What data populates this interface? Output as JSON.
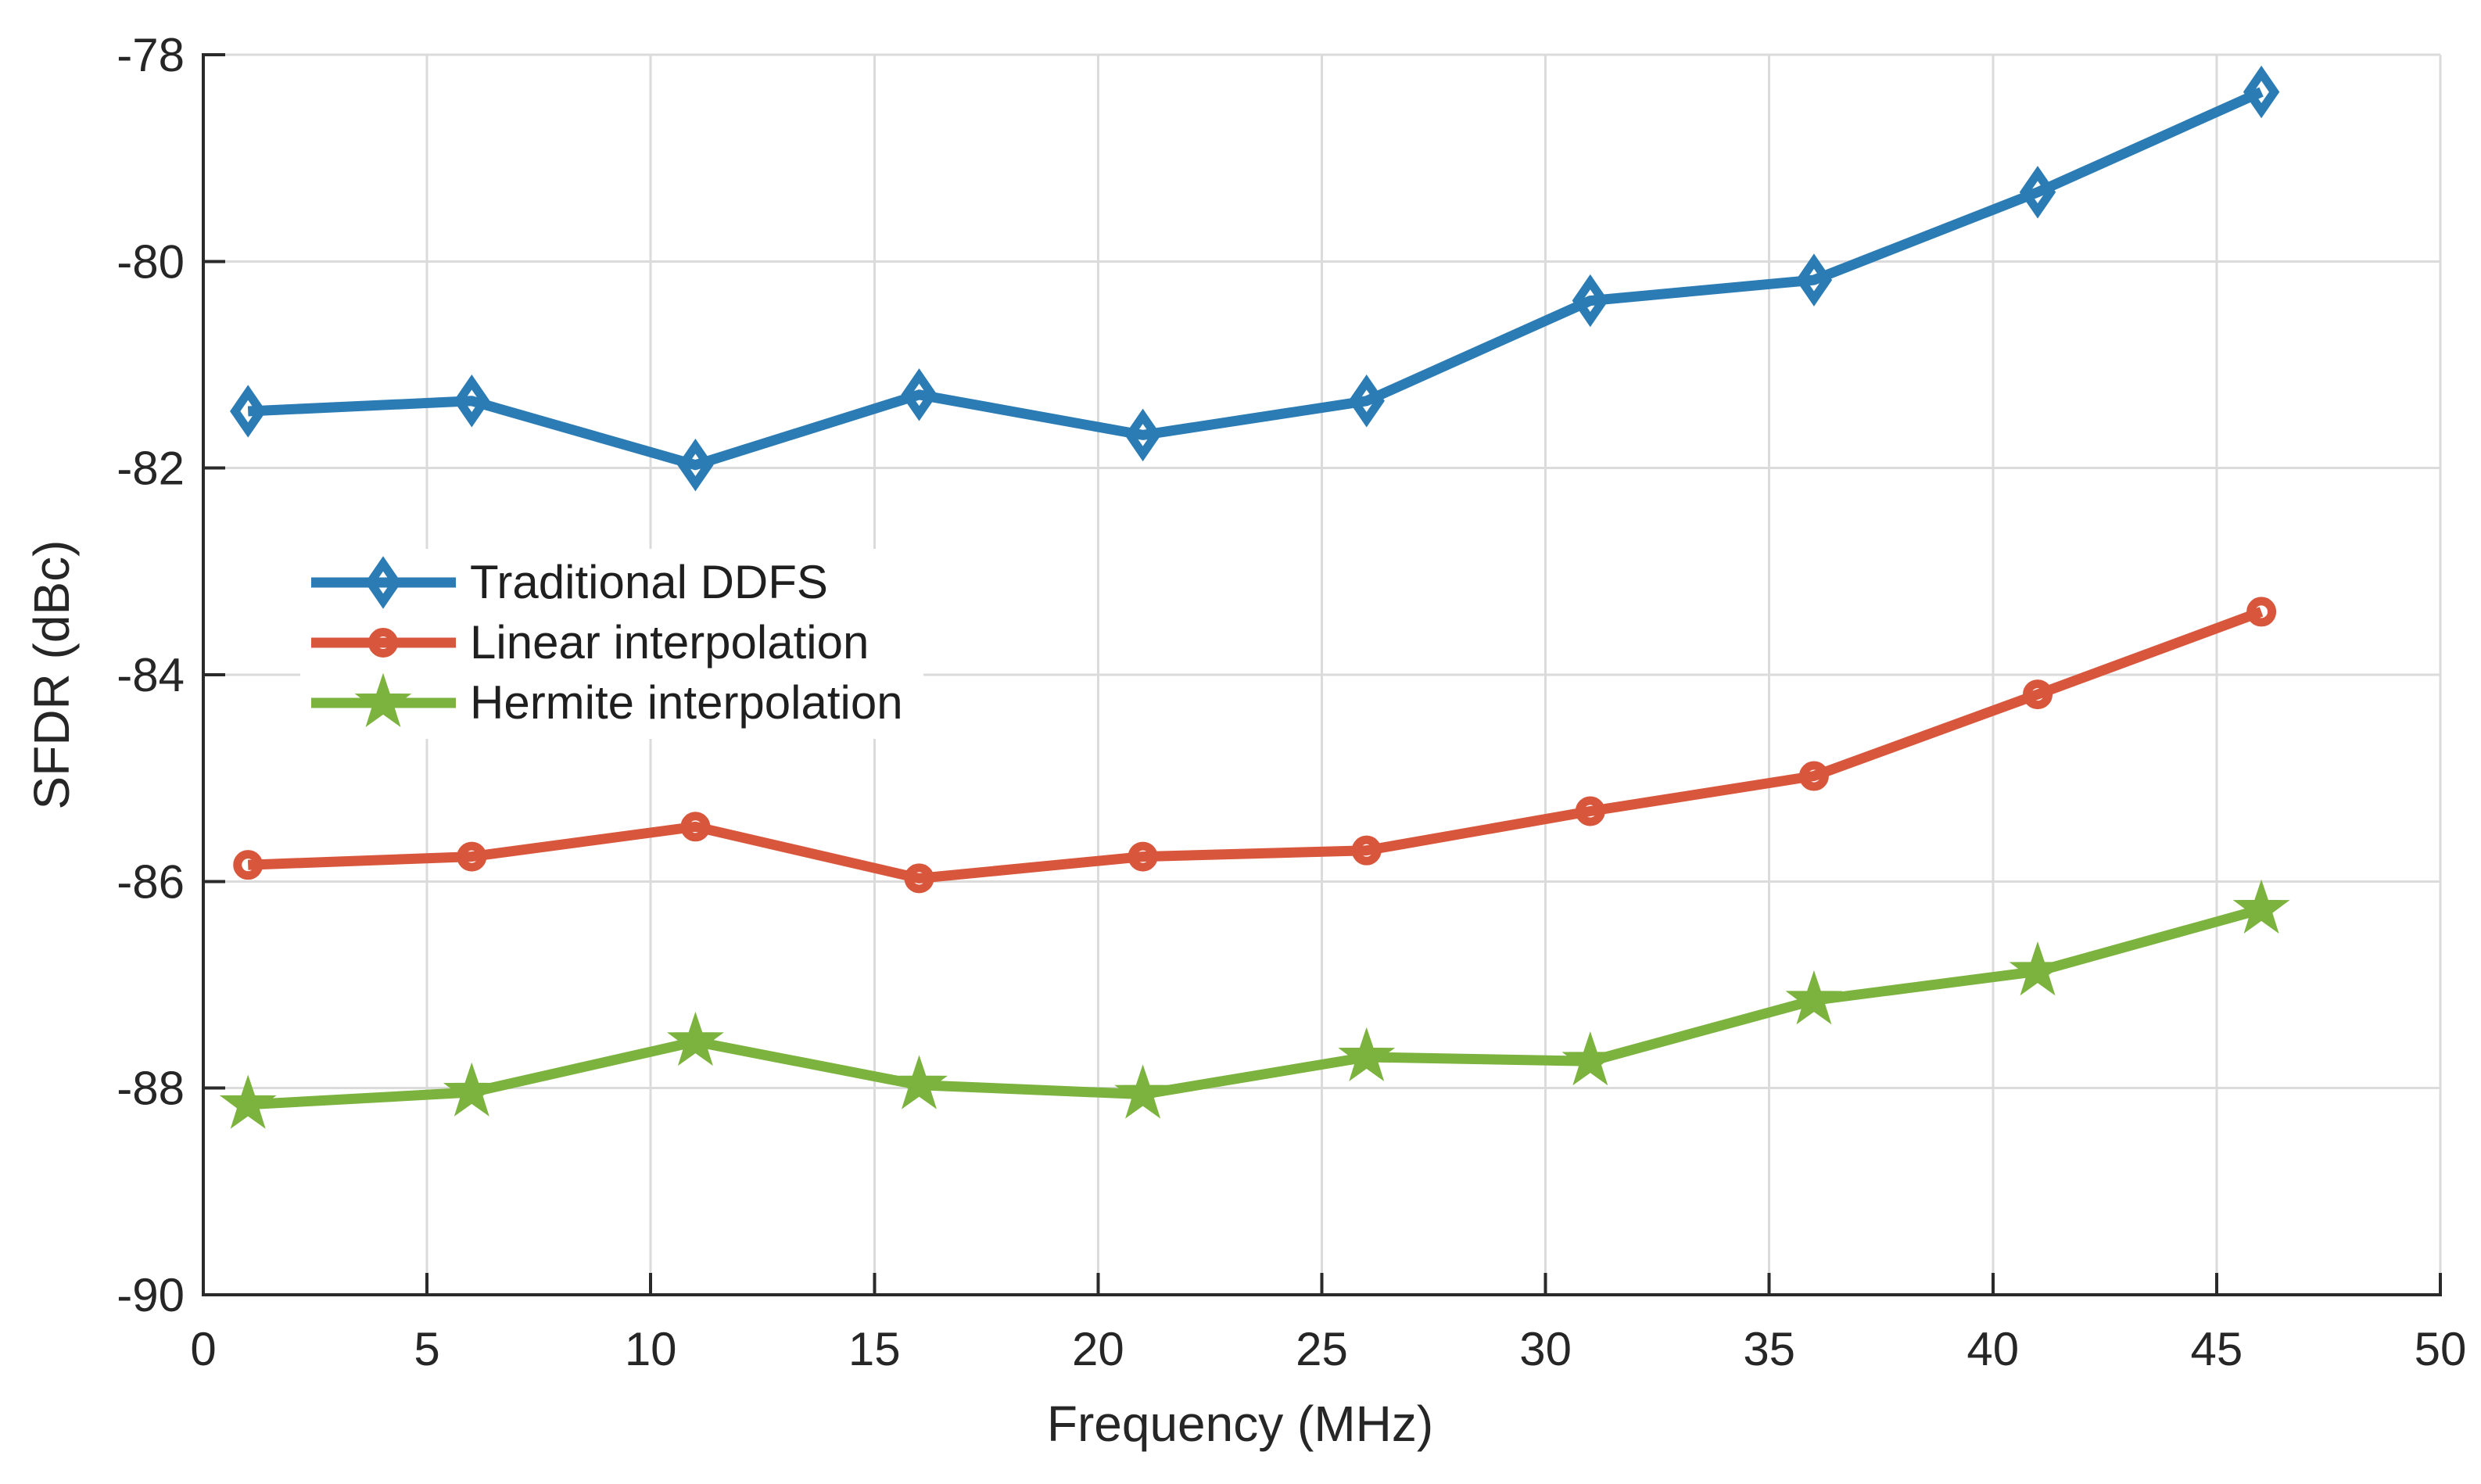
{
  "chart_data": {
    "type": "line",
    "title": "",
    "xlabel": "Frequency (MHz)",
    "ylabel": "SFDR (dBc)",
    "xlim": [
      0,
      50
    ],
    "ylim": [
      -90,
      -78
    ],
    "xticks": [
      0,
      5,
      10,
      15,
      20,
      25,
      30,
      35,
      40,
      45,
      50
    ],
    "yticks": [
      -90,
      -88,
      -86,
      -84,
      -82,
      -80,
      -78
    ],
    "grid": true,
    "legend_position": "upper-left-inside",
    "x": [
      1,
      6,
      11,
      16,
      21,
      26,
      31,
      36,
      41,
      46
    ],
    "series": [
      {
        "name": "Traditional DDFS",
        "marker": "diamond",
        "color": "#2B7BB5",
        "values": [
          -81.45,
          -81.35,
          -81.97,
          -81.29,
          -81.68,
          -81.35,
          -80.38,
          -80.18,
          -79.33,
          -78.36
        ]
      },
      {
        "name": "Linear interpolation",
        "marker": "circle",
        "color": "#D8573C",
        "values": [
          -85.84,
          -85.76,
          -85.47,
          -85.97,
          -85.76,
          -85.7,
          -85.32,
          -84.98,
          -84.19,
          -83.39
        ]
      },
      {
        "name": "Hermite interpolation",
        "marker": "star",
        "color": "#7CB33E",
        "values": [
          -88.16,
          -88.04,
          -87.55,
          -87.97,
          -88.06,
          -87.7,
          -87.74,
          -87.15,
          -86.87,
          -86.27
        ]
      }
    ],
    "colors": {
      "grid": "#DBDBDB",
      "axis": "#2A2A2A",
      "text": "#262626",
      "background": "#FFFFFF"
    }
  }
}
